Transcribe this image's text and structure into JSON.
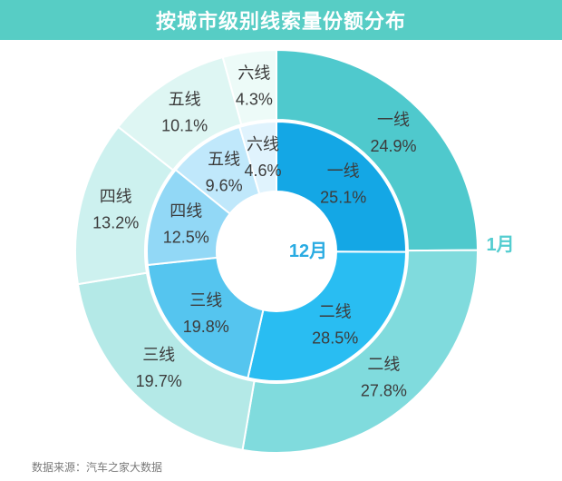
{
  "header": {
    "title": "按城市级别线索量份额分布"
  },
  "footer": {
    "source": "数据来源：汽车之家大数据"
  },
  "colors": {
    "background": "#FFFFFF",
    "banner": "#57CDC5",
    "title_text": "#FFFFFF",
    "label_text": "#3C3C3C",
    "source_text": "#7A7A7A"
  },
  "chart_data": {
    "type": "pie",
    "subtype": "nested-donut",
    "title": "按城市级别线索量份额分布",
    "unit": "%",
    "start_angle_deg": 90,
    "direction": "clockwise",
    "legend_position": "none",
    "categories": [
      "一线",
      "二线",
      "三线",
      "四线",
      "五线",
      "六线"
    ],
    "rings": [
      {
        "name": "1月",
        "position": "outer",
        "name_color": "#53CDD0",
        "values": [
          24.9,
          27.8,
          19.7,
          13.2,
          10.1,
          4.3
        ],
        "labels": [
          "一线 24.9%",
          "二线 27.8%",
          "三线 19.7%",
          "四线 13.2%",
          "五线 10.1%",
          "六线 4.3%"
        ],
        "colors": [
          "#4FC9CD",
          "#80DBDD",
          "#B4E9E7",
          "#CDF1EF",
          "#DEF6F3",
          "#EDFBF8"
        ]
      },
      {
        "name": "12月",
        "position": "inner",
        "name_color": "#29ABE2",
        "values": [
          25.1,
          28.5,
          19.8,
          12.5,
          9.6,
          4.6
        ],
        "labels": [
          "一线 25.1%",
          "二线 28.5%",
          "三线 19.8%",
          "四线 12.5%",
          "五线 9.6%",
          "六线 4.6%"
        ],
        "colors": [
          "#14A7E5",
          "#29BDF2",
          "#55C5EF",
          "#92D8F6",
          "#C0E8FB",
          "#E0F3FD"
        ]
      }
    ]
  }
}
